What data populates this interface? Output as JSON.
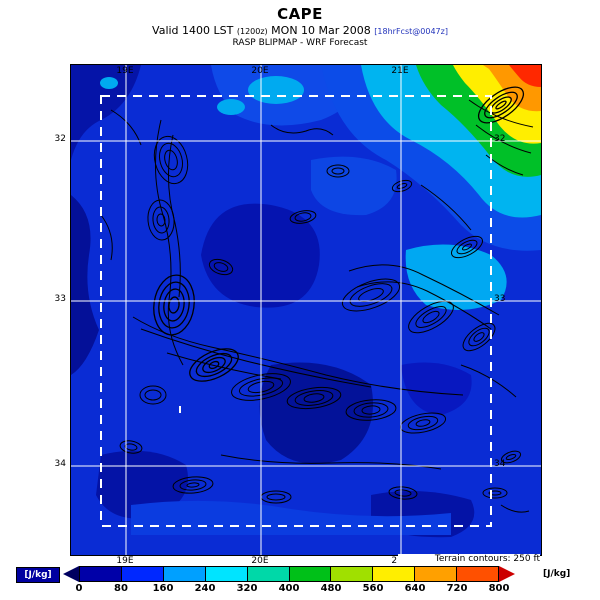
{
  "header": {
    "title": "CAPE",
    "valid_main": "Valid 1400 LST",
    "valid_zulu": "(1200z)",
    "valid_date": "MON 10 Mar 2008",
    "valid_fcst": "[18hrFcst@0047z]",
    "model_line": "RASP BLIPMAP - WRF Forecast"
  },
  "map": {
    "lon_labels": [
      "19E",
      "20E",
      "21E"
    ],
    "lat_labels": [
      "32",
      "33",
      "34"
    ]
  },
  "colorbar": {
    "units_left": "[J/kg]",
    "units_right": "[J/kg]",
    "units_left_bg": "#0000a0",
    "terrain_note": "Terrain contours: 250 ft",
    "ticks": [
      "0",
      "80",
      "160",
      "240",
      "320",
      "400",
      "480",
      "560",
      "640",
      "720",
      "800"
    ],
    "colors": [
      "#0000a8",
      "#0028ff",
      "#00a0ff",
      "#00e4ff",
      "#00d8a8",
      "#00c018",
      "#a0e000",
      "#ffee00",
      "#ffa000",
      "#ff5000"
    ],
    "arrow_left_color": "#000060",
    "arrow_right_color": "#cc0000"
  }
}
